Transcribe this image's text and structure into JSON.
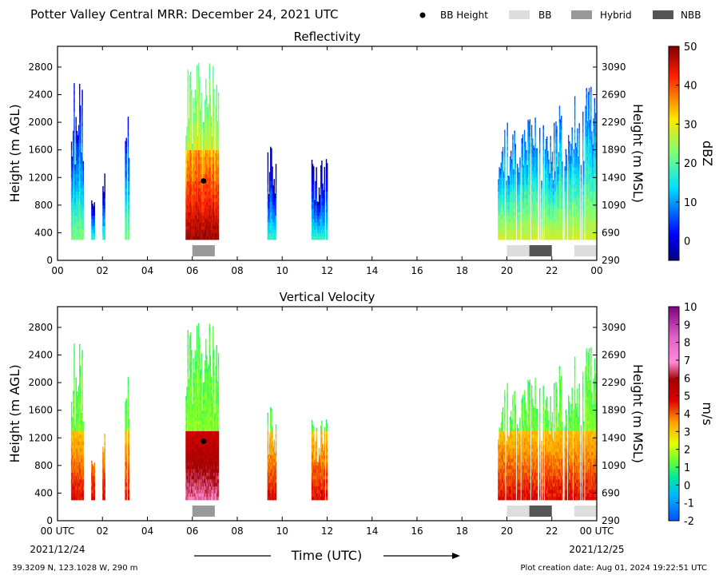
{
  "header": {
    "title": "Potter Valley Central MRR:  December 24, 2021 UTC",
    "legend": [
      {
        "label": "BB Height",
        "kind": "dot",
        "color": "#000000"
      },
      {
        "label": "BB",
        "kind": "swatch",
        "color": "#dddddd"
      },
      {
        "label": "Hybrid",
        "kind": "swatch",
        "color": "#999999"
      },
      {
        "label": "NBB",
        "kind": "swatch",
        "color": "#555555"
      }
    ]
  },
  "footer": {
    "location": "39.3209 N, 123.1028 W, 290 m",
    "created": "Plot creation date: Aug 01, 2024 19:22:51 UTC",
    "xlabel": "Time (UTC)",
    "start_date": "2021/12/24",
    "end_date": "2021/12/25"
  },
  "chart_data": [
    {
      "type": "heatmap",
      "title": "Reflectivity",
      "ylabel": "Height (m AGL)",
      "ylabel_right": "Height (m MSL)",
      "colorbar_label": "dBZ",
      "colorbar_ticks": [
        "0",
        "10",
        "20",
        "30",
        "40",
        "50"
      ],
      "colorbar_range": [
        -5,
        50
      ],
      "colormap": "jet",
      "xlim": [
        0,
        24
      ],
      "ylim": [
        0,
        3100
      ],
      "x_ticks": [
        "00",
        "02",
        "04",
        "06",
        "08",
        "10",
        "12",
        "14",
        "16",
        "18",
        "20",
        "22",
        "00"
      ],
      "y_ticks": [
        0,
        400,
        800,
        1200,
        1600,
        2000,
        2400,
        2800
      ],
      "y_ticks_right": [
        "290",
        "690",
        "1090",
        "1490",
        "1890",
        "2290",
        "2690",
        "3090"
      ],
      "bb_height": {
        "hour": 6.5,
        "height_m": 1150
      },
      "bright_band_periods": [
        {
          "start": 6.0,
          "end": 7.0,
          "type": "Hybrid"
        },
        {
          "start": 20.0,
          "end": 21.0,
          "type": "BB"
        },
        {
          "start": 21.0,
          "end": 22.0,
          "type": "NBB"
        },
        {
          "start": 23.0,
          "end": 24.0,
          "type": "BB"
        }
      ],
      "echo_regions": [
        {
          "start": 0.6,
          "end": 1.15,
          "top_m": 2600,
          "intensity": "weak-moderate"
        },
        {
          "start": 1.5,
          "end": 1.7,
          "top_m": 1000,
          "intensity": "weak"
        },
        {
          "start": 2.0,
          "end": 2.1,
          "top_m": 1300,
          "intensity": "weak"
        },
        {
          "start": 3.0,
          "end": 3.2,
          "top_m": 2100,
          "intensity": "weak-moderate"
        },
        {
          "start": 5.7,
          "end": 7.15,
          "top_m": 3000,
          "intensity": "strong"
        },
        {
          "start": 9.3,
          "end": 9.7,
          "top_m": 1750,
          "intensity": "weak"
        },
        {
          "start": 11.3,
          "end": 12.0,
          "top_m": 1500,
          "intensity": "weak"
        },
        {
          "start": 19.6,
          "end": 22.2,
          "top_m": 2100,
          "intensity": "moderate"
        },
        {
          "start": 22.2,
          "end": 24.0,
          "top_m": 2600,
          "intensity": "moderate"
        }
      ]
    },
    {
      "type": "heatmap",
      "title": "Vertical Velocity",
      "ylabel": "Height (m AGL)",
      "ylabel_right": "Height (m MSL)",
      "colorbar_label": "m/s",
      "colorbar_ticks": [
        "-2",
        "-1",
        "0",
        "1",
        "2",
        "3",
        "4",
        "5",
        "6",
        "7",
        "8",
        "9",
        "10"
      ],
      "colorbar_range": [
        -2,
        10
      ],
      "colormap": "velocity",
      "xlim": [
        0,
        24
      ],
      "ylim": [
        0,
        3100
      ],
      "x_ticks": [
        "00 UTC",
        "02",
        "04",
        "06",
        "08",
        "10",
        "12",
        "14",
        "16",
        "18",
        "20",
        "22",
        "00 UTC"
      ],
      "y_ticks": [
        0,
        400,
        800,
        1200,
        1600,
        2000,
        2400,
        2800
      ],
      "y_ticks_right": [
        "290",
        "690",
        "1090",
        "1490",
        "1890",
        "2290",
        "2690",
        "3090"
      ],
      "bb_height": {
        "hour": 6.5,
        "height_m": 1150
      },
      "bright_band_periods": [
        {
          "start": 6.0,
          "end": 7.0,
          "type": "Hybrid"
        },
        {
          "start": 20.0,
          "end": 21.0,
          "type": "BB"
        },
        {
          "start": 21.0,
          "end": 22.0,
          "type": "NBB"
        },
        {
          "start": 23.0,
          "end": 24.0,
          "type": "BB"
        }
      ]
    }
  ]
}
